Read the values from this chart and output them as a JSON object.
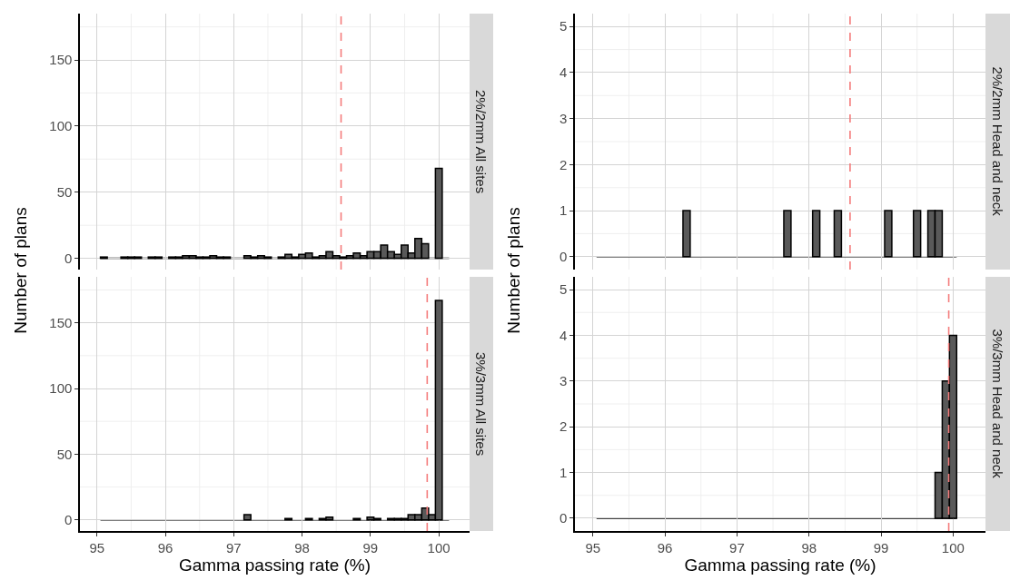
{
  "chart_data": [
    {
      "type": "histogram",
      "title": "2%/2mm All sites",
      "color": "#595959",
      "tick_labels": "y",
      "grid": true,
      "bins": [
        95.05,
        95.15,
        95.25,
        95.35,
        95.45,
        95.55,
        95.65,
        95.75,
        95.85,
        95.95,
        96.05,
        96.15,
        96.25,
        96.35,
        96.45,
        96.55,
        96.65,
        96.75,
        96.85,
        96.95,
        97.05,
        97.15,
        97.25,
        97.35,
        97.45,
        97.55,
        97.65,
        97.75,
        97.85,
        97.95,
        98.05,
        98.15,
        98.25,
        98.35,
        98.45,
        98.55,
        98.65,
        98.75,
        98.85,
        98.95,
        99.05,
        99.15,
        99.25,
        99.35,
        99.45,
        99.55,
        99.65,
        99.75,
        99.85,
        99.95,
        100.05,
        100.15
      ],
      "values": [
        1,
        0,
        0,
        1,
        1,
        1,
        0,
        1,
        1,
        0,
        1,
        1,
        2,
        2,
        1,
        1,
        2,
        1,
        1,
        0,
        0,
        2,
        1,
        2,
        1,
        0,
        1,
        3,
        1,
        3,
        4,
        1,
        2,
        5,
        2,
        1,
        2,
        4,
        2,
        5,
        5,
        10,
        5,
        3,
        10,
        4,
        15,
        11,
        0,
        68,
        0
      ],
      "xlim": [
        94.75,
        100.45
      ],
      "xticks": [
        95,
        {
          "value": 95.5,
          "label": null
        },
        96,
        {
          "value": 96.5,
          "label": null
        },
        97,
        {
          "value": 97.5,
          "label": null
        },
        98,
        {
          "value": 98.5,
          "label": null
        },
        99,
        {
          "value": 99.5,
          "label": null
        },
        100
      ],
      "ylim": [
        -8.5,
        185
      ],
      "yticks": [
        0,
        {
          "value": 25,
          "label": null
        },
        50,
        {
          "value": 75,
          "label": null
        },
        100,
        {
          "value": 125,
          "label": null
        },
        150,
        {
          "value": 175,
          "label": null
        }
      ],
      "ref_lines": [
        {
          "axis": "x",
          "value": 98.57,
          "color": "#f47c7c",
          "line_style": "dashed"
        }
      ]
    },
    {
      "type": "histogram",
      "title": "2%/2mm Head and neck",
      "color": "#595959",
      "tick_labels": "y",
      "grid": true,
      "bins": [
        95.05,
        95.15,
        95.25,
        95.35,
        95.45,
        95.55,
        95.65,
        95.75,
        95.85,
        95.95,
        96.05,
        96.15,
        96.25,
        96.35,
        96.45,
        96.55,
        96.65,
        96.75,
        96.85,
        96.95,
        97.05,
        97.15,
        97.25,
        97.35,
        97.45,
        97.55,
        97.65,
        97.75,
        97.85,
        97.95,
        98.05,
        98.15,
        98.25,
        98.35,
        98.45,
        98.55,
        98.65,
        98.75,
        98.85,
        98.95,
        99.05,
        99.15,
        99.25,
        99.35,
        99.45,
        99.55,
        99.65,
        99.75,
        99.85,
        99.95,
        100.05
      ],
      "values": [
        0,
        0,
        0,
        0,
        0,
        0,
        0,
        0,
        0,
        0,
        0,
        0,
        1,
        0,
        0,
        0,
        0,
        0,
        0,
        0,
        0,
        0,
        0,
        0,
        0,
        0,
        1,
        0,
        0,
        0,
        1,
        0,
        0,
        1,
        0,
        0,
        0,
        0,
        0,
        0,
        1,
        0,
        0,
        0,
        1,
        0,
        1,
        1,
        0,
        0
      ],
      "xlim": [
        94.75,
        100.45
      ],
      "xticks": [
        95,
        {
          "value": 95.5,
          "label": null
        },
        96,
        {
          "value": 96.5,
          "label": null
        },
        97,
        {
          "value": 97.5,
          "label": null
        },
        98,
        {
          "value": 98.5,
          "label": null
        },
        99,
        {
          "value": 99.5,
          "label": null
        },
        100
      ],
      "ylim": [
        -0.28,
        5.28
      ],
      "yticks": [
        0,
        {
          "value": 0.5,
          "label": null
        },
        1,
        {
          "value": 1.5,
          "label": null
        },
        2,
        {
          "value": 2.5,
          "label": null
        },
        3,
        {
          "value": 3.5,
          "label": null
        },
        4,
        {
          "value": 4.5,
          "label": null
        },
        5
      ],
      "ref_lines": [
        {
          "axis": "x",
          "value": 98.57,
          "color": "#f47c7c",
          "line_style": "dashed"
        }
      ]
    },
    {
      "type": "histogram",
      "title": "3%/3mm All sites",
      "xlabel": "Gamma passing rate (%)",
      "ylabel": "Number of plans",
      "color": "#595959",
      "grid": true,
      "bins": [
        95.05,
        95.15,
        95.25,
        95.35,
        95.45,
        95.55,
        95.65,
        95.75,
        95.85,
        95.95,
        96.05,
        96.15,
        96.25,
        96.35,
        96.45,
        96.55,
        96.65,
        96.75,
        96.85,
        96.95,
        97.05,
        97.15,
        97.25,
        97.35,
        97.45,
        97.55,
        97.65,
        97.75,
        97.85,
        97.95,
        98.05,
        98.15,
        98.25,
        98.35,
        98.45,
        98.55,
        98.65,
        98.75,
        98.85,
        98.95,
        99.05,
        99.15,
        99.25,
        99.35,
        99.45,
        99.55,
        99.65,
        99.75,
        99.85,
        99.95,
        100.05,
        100.15
      ],
      "values": [
        0,
        0,
        0,
        0,
        0,
        0,
        0,
        0,
        0,
        0,
        0,
        0,
        0,
        0,
        0,
        0,
        0,
        0,
        0,
        0,
        0,
        4,
        0,
        0,
        0,
        0,
        0,
        1,
        0,
        0,
        1,
        0,
        1,
        2,
        0,
        0,
        0,
        1,
        0,
        2,
        1,
        0,
        1,
        1,
        1,
        4,
        4,
        9,
        4,
        167,
        0
      ],
      "xlim": [
        94.75,
        100.45
      ],
      "xticks": [
        95,
        {
          "value": 95.5,
          "label": null
        },
        96,
        {
          "value": 96.5,
          "label": null
        },
        97,
        {
          "value": 97.5,
          "label": null
        },
        98,
        {
          "value": 98.5,
          "label": null
        },
        99,
        {
          "value": 99.5,
          "label": null
        },
        100
      ],
      "ylim": [
        -8.5,
        185
      ],
      "yticks": [
        0,
        {
          "value": 25,
          "label": null
        },
        50,
        {
          "value": 75,
          "label": null
        },
        100,
        {
          "value": 125,
          "label": null
        },
        150,
        {
          "value": 175,
          "label": null
        }
      ],
      "ref_lines": [
        {
          "axis": "x",
          "value": 99.83,
          "color": "#f47c7c",
          "line_style": "dashed"
        }
      ]
    },
    {
      "type": "histogram",
      "title": "3%/3mm Head and neck",
      "xlabel": "Gamma passing rate (%)",
      "ylabel": "Number of plans",
      "color": "#595959",
      "grid": true,
      "bins": [
        95.05,
        95.15,
        95.25,
        95.35,
        95.45,
        95.55,
        95.65,
        95.75,
        95.85,
        95.95,
        96.05,
        96.15,
        96.25,
        96.35,
        96.45,
        96.55,
        96.65,
        96.75,
        96.85,
        96.95,
        97.05,
        97.15,
        97.25,
        97.35,
        97.45,
        97.55,
        97.65,
        97.75,
        97.85,
        97.95,
        98.05,
        98.15,
        98.25,
        98.35,
        98.45,
        98.55,
        98.65,
        98.75,
        98.85,
        98.95,
        99.05,
        99.15,
        99.25,
        99.35,
        99.45,
        99.55,
        99.65,
        99.75,
        99.85,
        99.95,
        100.05
      ],
      "values": [
        0,
        0,
        0,
        0,
        0,
        0,
        0,
        0,
        0,
        0,
        0,
        0,
        0,
        0,
        0,
        0,
        0,
        0,
        0,
        0,
        0,
        0,
        0,
        0,
        0,
        0,
        0,
        0,
        0,
        0,
        0,
        0,
        0,
        0,
        0,
        0,
        0,
        0,
        0,
        0,
        0,
        0,
        0,
        0,
        0,
        0,
        0,
        1,
        3,
        4
      ],
      "xlim": [
        94.75,
        100.45
      ],
      "xticks": [
        95,
        {
          "value": 95.5,
          "label": null
        },
        96,
        {
          "value": 96.5,
          "label": null
        },
        97,
        {
          "value": 97.5,
          "label": null
        },
        98,
        {
          "value": 98.5,
          "label": null
        },
        99,
        {
          "value": 99.5,
          "label": null
        },
        100
      ],
      "ylim": [
        -0.28,
        5.28
      ],
      "yticks": [
        0,
        {
          "value": 0.5,
          "label": null
        },
        1,
        {
          "value": 1.5,
          "label": null
        },
        2,
        {
          "value": 2.5,
          "label": null
        },
        3,
        {
          "value": 3.5,
          "label": null
        },
        4,
        {
          "value": 4.5,
          "label": null
        },
        5
      ],
      "ref_lines": [
        {
          "axis": "x",
          "value": 99.94,
          "color": "#f47c7c",
          "line_style": "dashed"
        }
      ]
    }
  ]
}
